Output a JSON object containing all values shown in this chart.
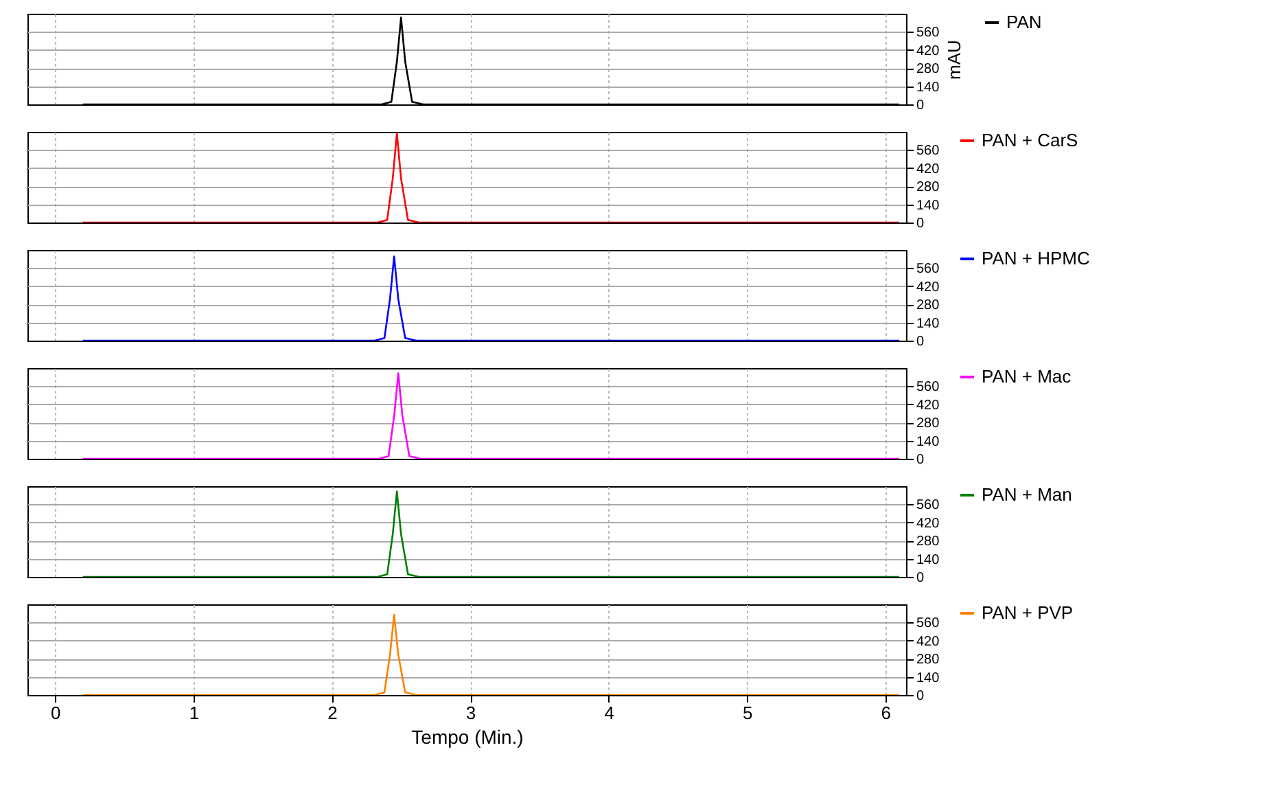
{
  "chart_data": [
    {
      "type": "line",
      "ylabel": "mAU",
      "xlim": [
        -0.2,
        6.15
      ],
      "xticks": [
        0,
        1,
        2,
        3,
        4,
        5,
        6
      ],
      "ylim": [
        0,
        700
      ],
      "yticks": [
        0,
        140,
        280,
        420,
        560
      ],
      "grid": true,
      "legend": "right",
      "line_style": "solid",
      "marker": "none",
      "tick_labels": "y",
      "series": [
        {
          "name": "PAN",
          "color": "#000000",
          "x": [
            0.2,
            2.36,
            2.43,
            2.47,
            2.5,
            2.53,
            2.58,
            2.66,
            6.1
          ],
          "values": [
            0,
            0,
            20,
            330,
            670,
            330,
            20,
            0,
            0
          ]
        }
      ]
    },
    {
      "type": "line",
      "xlim": [
        -0.2,
        6.15
      ],
      "xticks": [
        0,
        1,
        2,
        3,
        4,
        5,
        6
      ],
      "ylim": [
        0,
        700
      ],
      "yticks": [
        0,
        140,
        280,
        420,
        560
      ],
      "grid": true,
      "legend": "right",
      "line_style": "solid",
      "marker": "none",
      "tick_labels": "y",
      "series": [
        {
          "name": "PAN + CarS",
          "color": "#ff0000",
          "x": [
            0.2,
            2.33,
            2.4,
            2.44,
            2.47,
            2.5,
            2.55,
            2.63,
            6.1
          ],
          "values": [
            0,
            0,
            20,
            340,
            690,
            340,
            20,
            0,
            0
          ]
        }
      ]
    },
    {
      "type": "line",
      "xlim": [
        -0.2,
        6.15
      ],
      "xticks": [
        0,
        1,
        2,
        3,
        4,
        5,
        6
      ],
      "ylim": [
        0,
        700
      ],
      "yticks": [
        0,
        140,
        280,
        420,
        560
      ],
      "grid": true,
      "legend": "right",
      "line_style": "solid",
      "marker": "none",
      "tick_labels": "y",
      "series": [
        {
          "name": "PAN + HPMC",
          "color": "#0000ff",
          "x": [
            0.2,
            2.31,
            2.38,
            2.42,
            2.45,
            2.48,
            2.53,
            2.61,
            6.1
          ],
          "values": [
            0,
            0,
            20,
            320,
            650,
            320,
            20,
            0,
            0
          ]
        }
      ]
    },
    {
      "type": "line",
      "xlim": [
        -0.2,
        6.15
      ],
      "xticks": [
        0,
        1,
        2,
        3,
        4,
        5,
        6
      ],
      "ylim": [
        0,
        700
      ],
      "yticks": [
        0,
        140,
        280,
        420,
        560
      ],
      "grid": true,
      "legend": "right",
      "line_style": "solid",
      "marker": "none",
      "tick_labels": "y",
      "series": [
        {
          "name": "PAN + Mac",
          "color": "#ff00ff",
          "x": [
            0.2,
            2.34,
            2.41,
            2.45,
            2.48,
            2.51,
            2.56,
            2.64,
            6.1
          ],
          "values": [
            0,
            0,
            20,
            330,
            660,
            330,
            20,
            0,
            0
          ]
        }
      ]
    },
    {
      "type": "line",
      "xlim": [
        -0.2,
        6.15
      ],
      "xticks": [
        0,
        1,
        2,
        3,
        4,
        5,
        6
      ],
      "ylim": [
        0,
        700
      ],
      "yticks": [
        0,
        140,
        280,
        420,
        560
      ],
      "grid": true,
      "legend": "right",
      "line_style": "solid",
      "marker": "none",
      "tick_labels": "y",
      "series": [
        {
          "name": "PAN + Man",
          "color": "#008000",
          "x": [
            0.2,
            2.33,
            2.4,
            2.44,
            2.47,
            2.5,
            2.55,
            2.63,
            6.1
          ],
          "values": [
            0,
            0,
            20,
            330,
            660,
            330,
            20,
            0,
            0
          ]
        }
      ]
    },
    {
      "type": "line",
      "xlabel": "Tempo (Min.)",
      "xlim": [
        -0.2,
        6.15
      ],
      "xticks": [
        0,
        1,
        2,
        3,
        4,
        5,
        6
      ],
      "ylim": [
        0,
        700
      ],
      "yticks": [
        0,
        140,
        280,
        420,
        560
      ],
      "grid": true,
      "legend": "right",
      "line_style": "solid",
      "marker": "none",
      "series": [
        {
          "name": "PAN + PVP",
          "color": "#ff8000",
          "x": [
            0.2,
            2.31,
            2.38,
            2.42,
            2.45,
            2.48,
            2.53,
            2.61,
            6.1
          ],
          "values": [
            0,
            0,
            20,
            310,
            620,
            310,
            20,
            0,
            0
          ]
        }
      ]
    }
  ]
}
